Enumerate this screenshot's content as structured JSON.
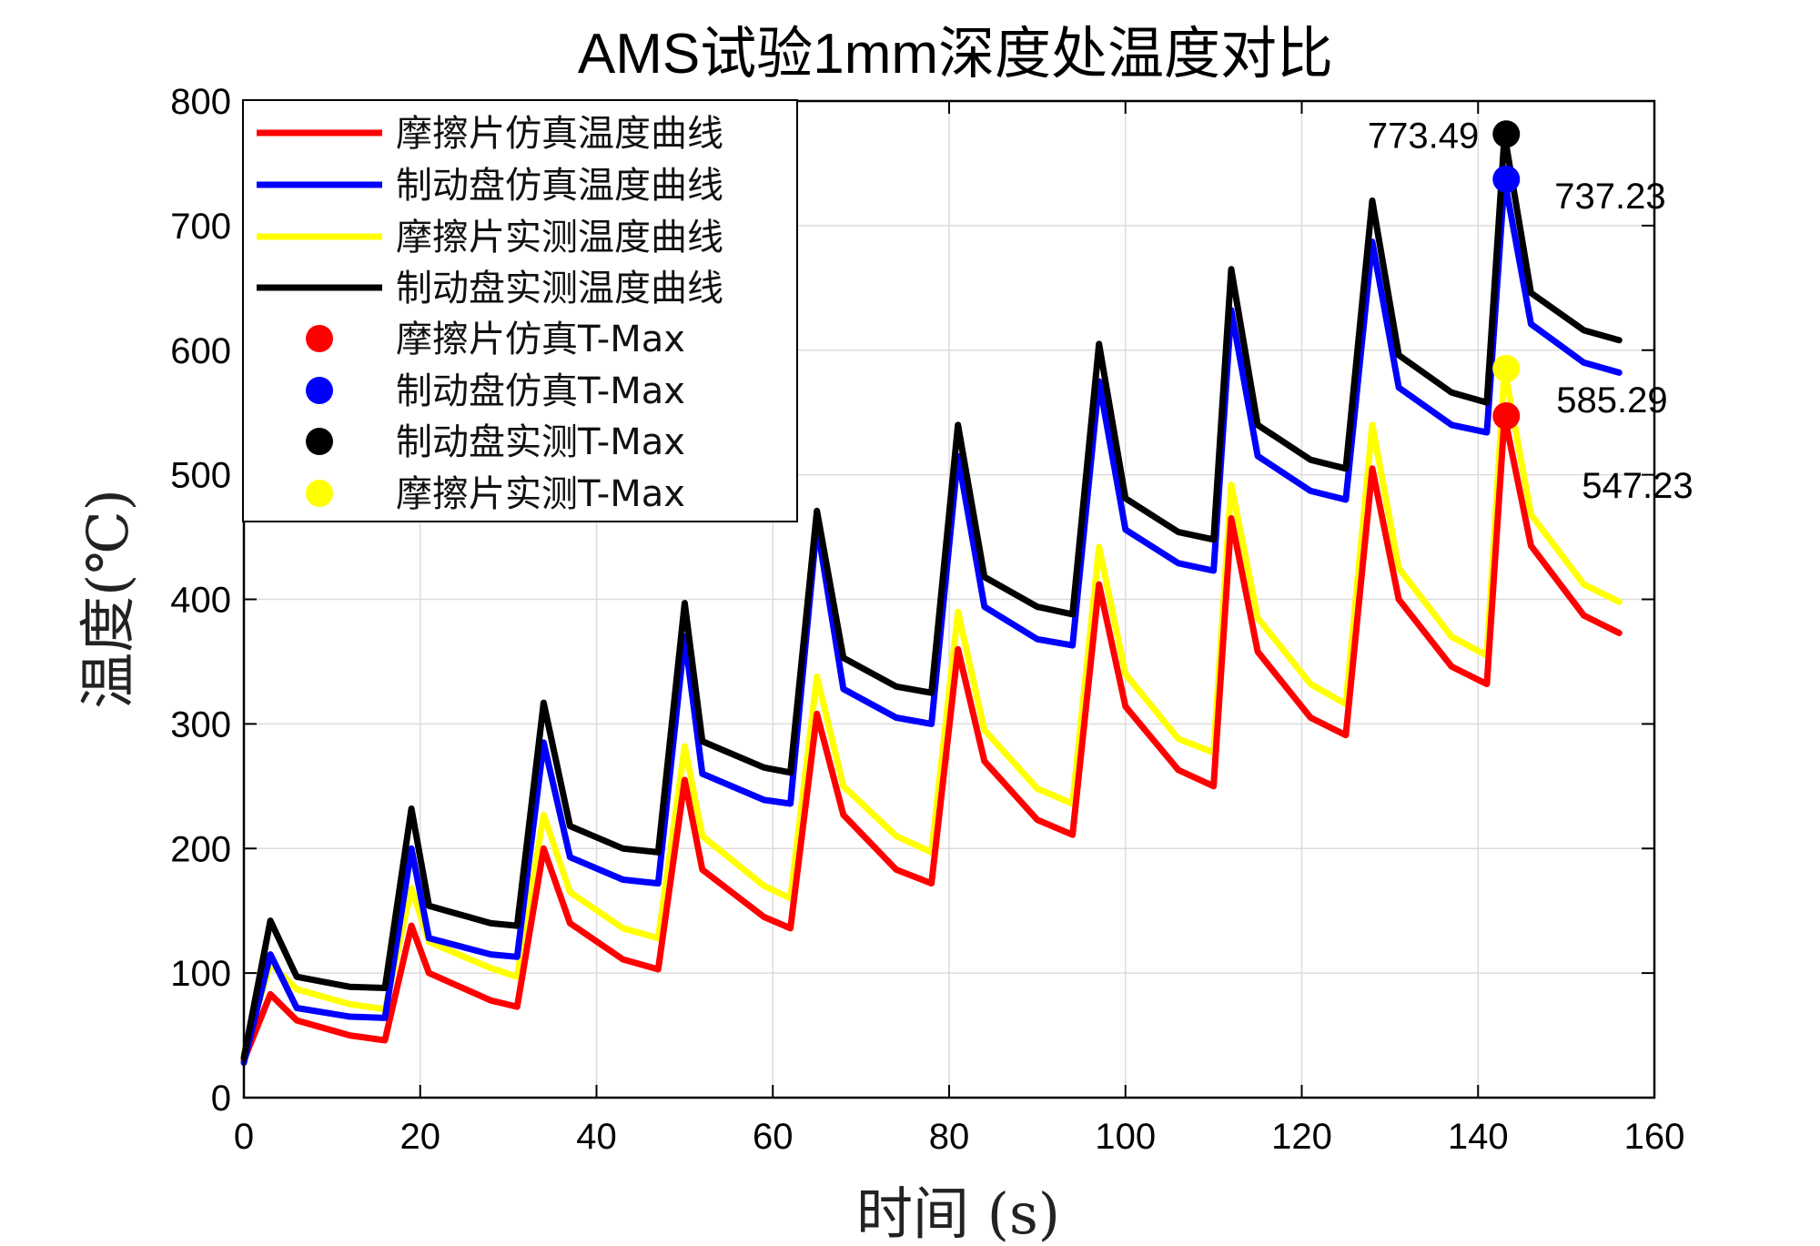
{
  "chart_data": {
    "type": "line",
    "title": "AMS试验1mm深度处温度对比",
    "xlabel": "时间 (s)",
    "ylabel": "温度(℃)",
    "xlim": [
      0,
      160
    ],
    "ylim": [
      0,
      800
    ],
    "xticks": [
      0,
      20,
      40,
      60,
      80,
      100,
      120,
      140,
      160
    ],
    "yticks": [
      0,
      100,
      200,
      300,
      400,
      500,
      600,
      700,
      800
    ],
    "grid": true,
    "legend_position": "top-left",
    "series": [
      {
        "name": "摩擦片仿真温度曲线",
        "color": "#ff0000",
        "x": [
          0,
          3,
          6,
          12,
          16,
          19,
          21,
          28,
          31,
          34,
          37,
          43,
          47,
          50,
          52,
          59,
          62,
          65,
          68,
          74,
          78,
          81,
          84,
          90,
          94,
          97,
          100,
          106,
          110,
          112,
          115,
          121,
          125,
          128,
          131,
          137,
          141,
          143,
          146,
          152,
          156
        ],
        "y": [
          30,
          83,
          62,
          50,
          46,
          138,
          100,
          78,
          73,
          200,
          140,
          111,
          103,
          255,
          183,
          145,
          136,
          308,
          227,
          183,
          172,
          360,
          270,
          223,
          211,
          412,
          314,
          263,
          250,
          465,
          358,
          305,
          291,
          505,
          400,
          346,
          332,
          547,
          443,
          387,
          373
        ]
      },
      {
        "name": "制动盘仿真温度曲线",
        "color": "#0000ff",
        "x": [
          0,
          3,
          6,
          12,
          16,
          19,
          21,
          28,
          31,
          34,
          37,
          43,
          47,
          50,
          52,
          59,
          62,
          65,
          68,
          74,
          78,
          81,
          84,
          90,
          94,
          97,
          100,
          106,
          110,
          112,
          115,
          121,
          125,
          128,
          131,
          137,
          141,
          143,
          146,
          152,
          156
        ],
        "y": [
          28,
          115,
          72,
          65,
          64,
          200,
          128,
          115,
          113,
          285,
          193,
          175,
          172,
          370,
          260,
          239,
          236,
          460,
          328,
          305,
          300,
          515,
          394,
          368,
          363,
          575,
          456,
          429,
          423,
          632,
          515,
          487,
          480,
          687,
          570,
          540,
          534,
          737,
          621,
          590,
          582
        ]
      },
      {
        "name": "摩擦片实测温度曲线",
        "color": "#ffff00",
        "x": [
          0,
          3,
          6,
          12,
          16,
          19,
          21,
          28,
          31,
          34,
          37,
          43,
          47,
          50,
          52,
          59,
          62,
          65,
          68,
          74,
          78,
          81,
          84,
          90,
          94,
          97,
          100,
          106,
          110,
          112,
          115,
          121,
          125,
          128,
          131,
          137,
          141,
          143,
          146,
          152,
          156
        ],
        "y": [
          35,
          108,
          87,
          75,
          71,
          168,
          125,
          104,
          97,
          227,
          165,
          136,
          128,
          282,
          210,
          170,
          160,
          338,
          250,
          210,
          197,
          390,
          295,
          248,
          236,
          442,
          340,
          288,
          277,
          492,
          385,
          332,
          316,
          540,
          425,
          370,
          355,
          585,
          468,
          412,
          398
        ]
      },
      {
        "name": "制动盘实测温度曲线",
        "color": "#000000",
        "x": [
          0,
          3,
          6,
          12,
          16,
          19,
          21,
          28,
          31,
          34,
          37,
          43,
          47,
          50,
          52,
          59,
          62,
          65,
          68,
          74,
          78,
          81,
          84,
          90,
          94,
          97,
          100,
          106,
          110,
          112,
          115,
          121,
          125,
          128,
          131,
          137,
          141,
          143,
          146,
          152,
          156
        ],
        "y": [
          32,
          142,
          97,
          89,
          88,
          232,
          154,
          140,
          138,
          317,
          218,
          200,
          197,
          397,
          286,
          265,
          261,
          471,
          353,
          330,
          325,
          540,
          418,
          394,
          388,
          605,
          481,
          454,
          448,
          665,
          540,
          512,
          505,
          720,
          596,
          566,
          558,
          773,
          646,
          616,
          608
        ]
      }
    ],
    "markers": [
      {
        "name": "摩擦片仿真T-Max",
        "color": "#ff0000",
        "x": 143.2,
        "y": 547.23,
        "label": "547.23"
      },
      {
        "name": "制动盘仿真T-Max",
        "color": "#0000ff",
        "x": 143.2,
        "y": 737.23,
        "label": "737.23"
      },
      {
        "name": "制动盘实测T-Max",
        "color": "#000000",
        "x": 143.2,
        "y": 773.49,
        "label": "773.49"
      },
      {
        "name": "摩擦片实测T-Max",
        "color": "#ffff00",
        "x": 143.2,
        "y": 585.29,
        "label": "585.29"
      }
    ]
  }
}
